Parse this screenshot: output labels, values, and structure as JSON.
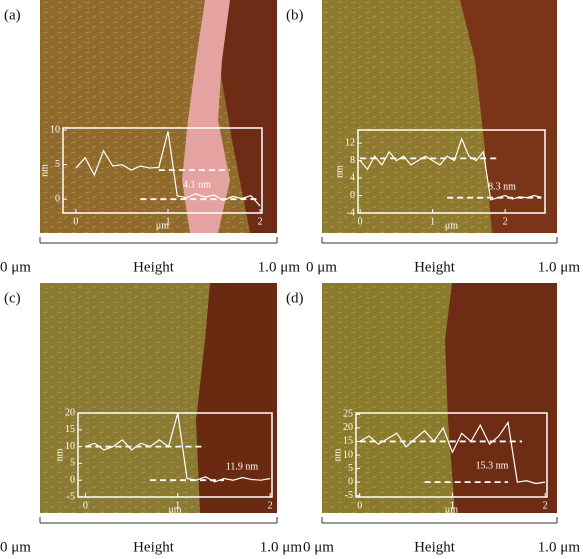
{
  "chart_data": [
    {
      "type": "line",
      "label": "(a)",
      "ylabel": "nm",
      "xlabel": "μm",
      "annotation": "4.1 nm",
      "x": [
        0,
        0.1,
        0.2,
        0.3,
        0.4,
        0.5,
        0.6,
        0.7,
        0.8,
        0.9,
        1.0,
        1.1,
        1.2,
        1.3,
        1.4,
        1.5,
        1.6,
        1.7,
        1.8,
        1.9,
        2.0
      ],
      "series": [
        {
          "color": "#ffffff",
          "values": [
            4.5,
            6,
            3.5,
            7,
            4.8,
            5,
            4.2,
            4.8,
            4.5,
            4.6,
            9.8,
            0.5,
            0.2,
            0.8,
            0.3,
            0.6,
            -0.2,
            0.4,
            0.1,
            0.5,
            -1
          ]
        }
      ],
      "reference_lines": [
        {
          "y": 4.2,
          "x": [
            0.9,
            1.67
          ]
        },
        {
          "y": 0,
          "x": [
            0.7,
            2.0
          ]
        }
      ],
      "xlim": [
        -0.14,
        2.02
      ],
      "ylim": [
        -2,
        10.3
      ],
      "xticks": [
        0,
        1,
        2
      ],
      "yticks": [
        0,
        5,
        10
      ],
      "colorbar": {
        "min_label": "0 μm",
        "label": "Height",
        "max_label": "1.0 μm"
      }
    },
    {
      "type": "line",
      "label": "(b)",
      "ylabel": "nm",
      "xlabel": "μm",
      "annotation": "8.3 nm",
      "x": [
        0,
        0.1,
        0.2,
        0.3,
        0.4,
        0.5,
        0.6,
        0.7,
        0.8,
        0.9,
        1.0,
        1.1,
        1.2,
        1.3,
        1.4,
        1.5,
        1.6,
        1.7,
        1.8,
        1.9,
        2.0,
        2.1,
        2.2,
        2.3,
        2.4,
        2.5
      ],
      "series": [
        {
          "color": "#ffffff",
          "values": [
            8,
            6,
            9,
            7,
            10,
            8,
            9,
            7,
            8,
            9,
            8,
            7,
            9,
            8,
            13,
            9,
            8,
            10,
            -1,
            -0.5,
            0,
            -0.8,
            -0.3,
            -0.5,
            0,
            -0.4
          ]
        }
      ],
      "reference_lines": [
        {
          "y": 8.5,
          "x": [
            0,
            1.9
          ]
        },
        {
          "y": -0.5,
          "x": [
            1.2,
            2.5
          ]
        }
      ],
      "xlim": [
        -0.03,
        2.55
      ],
      "ylim": [
        -4,
        15
      ],
      "xticks": [
        0,
        1,
        2
      ],
      "yticks": [
        -4,
        0,
        4,
        8,
        12
      ],
      "colorbar": {
        "min_label": "0 μm",
        "label": "Height",
        "max_label": "1.0 μm"
      }
    },
    {
      "type": "line",
      "label": "(c)",
      "ylabel": "nm",
      "xlabel": "μm",
      "annotation": "11.9 nm",
      "x": [
        0,
        0.1,
        0.2,
        0.3,
        0.4,
        0.5,
        0.6,
        0.7,
        0.8,
        0.9,
        1.0,
        1.1,
        1.2,
        1.3,
        1.4,
        1.5,
        1.6,
        1.7,
        1.8,
        1.9,
        2.0
      ],
      "series": [
        {
          "color": "#ffffff",
          "values": [
            10,
            11,
            9,
            10,
            12,
            9,
            11,
            10,
            12,
            10,
            20,
            0.5,
            0,
            1,
            -0.5,
            0.5,
            0,
            0.8,
            0.2,
            0,
            0.5
          ]
        }
      ],
      "reference_lines": [
        {
          "y": 10,
          "x": [
            0,
            1.3
          ]
        },
        {
          "y": 0,
          "x": [
            0.7,
            1.5
          ]
        }
      ],
      "xlim": [
        -0.08,
        2.02
      ],
      "ylim": [
        -5,
        20
      ],
      "xticks": [
        0,
        1,
        2
      ],
      "yticks": [
        -5,
        0,
        5,
        10,
        15,
        20
      ],
      "colorbar": {
        "min_label": "0 μm",
        "label": "Height",
        "max_label": "1.0 μm"
      }
    },
    {
      "type": "line",
      "label": "(d)",
      "ylabel": "nm",
      "xlabel": "μm",
      "annotation": "15.3 nm",
      "x": [
        0,
        0.1,
        0.2,
        0.3,
        0.4,
        0.5,
        0.6,
        0.7,
        0.8,
        0.9,
        1.0,
        1.1,
        1.2,
        1.3,
        1.4,
        1.5,
        1.6,
        1.7,
        1.8,
        1.9,
        2.0
      ],
      "series": [
        {
          "color": "#ffffff",
          "values": [
            15,
            17,
            14,
            16,
            18,
            13,
            16,
            19,
            15,
            20,
            11,
            18,
            15,
            21,
            14,
            17,
            22,
            0,
            0.5,
            -0.5,
            0
          ]
        }
      ],
      "reference_lines": [
        {
          "y": 15,
          "x": [
            0,
            1.75
          ]
        },
        {
          "y": 0,
          "x": [
            0.7,
            1.6
          ]
        }
      ],
      "xlim": [
        -0.04,
        2.02
      ],
      "ylim": [
        -5.5,
        25.5
      ],
      "xticks": [
        0,
        1,
        2
      ],
      "yticks": [
        -5,
        0,
        5,
        10,
        15,
        20,
        25
      ],
      "colorbar": {
        "min_label": "0 μm",
        "label": "Height",
        "max_label": "1.0 μm"
      }
    }
  ]
}
